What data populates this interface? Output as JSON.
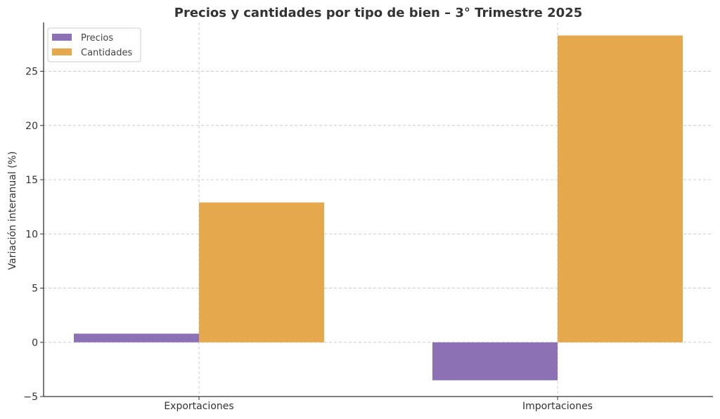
{
  "chart_data": {
    "type": "bar",
    "title": "Precios y cantidades por tipo de bien – 3° Trimestre 2025",
    "xlabel": "",
    "ylabel": "Variación interanual (%)",
    "categories": [
      "Exportaciones",
      "Importaciones"
    ],
    "series": [
      {
        "name": "Precios",
        "color": "#8c72b4",
        "values": [
          0.8,
          -3.5
        ]
      },
      {
        "name": "Cantidades",
        "color": "#e6a84c",
        "values": [
          12.9,
          28.3
        ]
      }
    ],
    "ylim": [
      -5,
      29.5
    ],
    "yticks": [
      -5,
      0,
      5,
      10,
      15,
      20,
      25
    ],
    "ytick_labels": [
      "−5",
      "0",
      "5",
      "10",
      "15",
      "20",
      "25"
    ],
    "grid": true,
    "legend_position": "top-left"
  }
}
